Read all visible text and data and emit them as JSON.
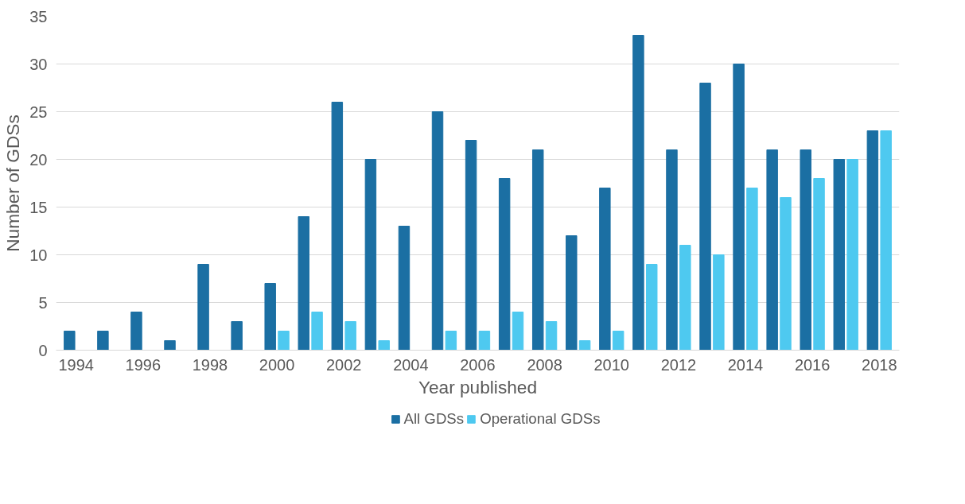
{
  "chart_data": {
    "type": "bar",
    "xlabel": "Year published",
    "ylabel": "Number of GDSs",
    "categories": [
      "1994",
      null,
      "1996",
      null,
      "1998",
      null,
      "2000",
      null,
      "2002",
      null,
      "2004",
      null,
      "2006",
      null,
      "2008",
      null,
      "2010",
      null,
      "2012",
      null,
      "2014",
      null,
      "2016",
      null,
      "2018"
    ],
    "series": [
      {
        "name": "All GDSs",
        "color": "#1b6fa3",
        "values": [
          2,
          2,
          4,
          1,
          9,
          3,
          7,
          14,
          26,
          20,
          13,
          25,
          22,
          18,
          21,
          12,
          17,
          33,
          21,
          28,
          30,
          21,
          21,
          20,
          23
        ]
      },
      {
        "name": "Operational GDSs",
        "color": "#4ec9f0",
        "values": [
          null,
          null,
          null,
          null,
          null,
          null,
          2,
          4,
          3,
          1,
          null,
          2,
          2,
          4,
          3,
          1,
          2,
          9,
          11,
          10,
          17,
          16,
          18,
          20,
          23
        ]
      }
    ],
    "ylim": [
      0,
      35
    ],
    "yticks": [
      0,
      5,
      10,
      15,
      20,
      25,
      30,
      35
    ],
    "grid": "y",
    "legend": "bottom"
  }
}
